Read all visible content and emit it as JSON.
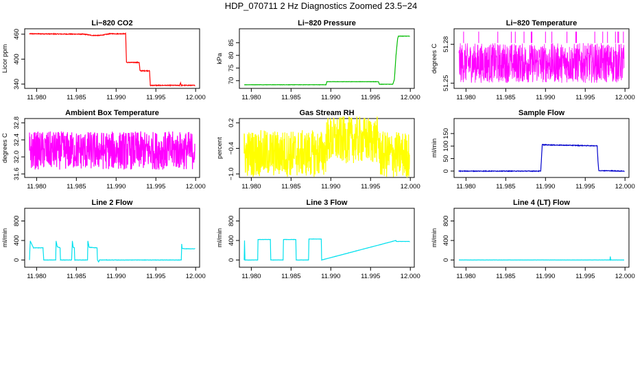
{
  "title": "HDP_070711  2 Hz Diagnostics Zoomed 23.5−24",
  "chart_data": [
    {
      "type": "line",
      "title": "Li−820 CO2",
      "ylabel": "Licor ppm",
      "color": "#ff0000",
      "xlim": [
        11.9785,
        12.0005
      ],
      "ylim": [
        333,
        473
      ],
      "xticks": [
        11.98,
        11.985,
        11.99,
        11.995,
        12.0
      ],
      "xtick_labels": [
        "11.980",
        "11.985",
        "11.990",
        "11.995",
        "12.000"
      ],
      "yticks": [
        340,
        400,
        460
      ],
      "ytick_labels": [
        "340",
        "400",
        "460"
      ],
      "noise": 0.8,
      "x": [
        11.9791,
        11.986,
        11.987,
        11.988,
        11.9892,
        11.9912,
        11.9913,
        11.9929,
        11.993,
        11.9942,
        11.9943,
        11.998,
        11.9981,
        11.9982,
        11.9999
      ],
      "y": [
        461,
        460,
        457,
        457,
        461,
        461,
        392,
        392,
        372,
        372,
        337,
        337,
        343,
        337,
        337
      ]
    },
    {
      "type": "line",
      "title": "Li−820 Pressure",
      "ylabel": "kPa",
      "color": "#00bb00",
      "xlim": [
        11.9785,
        12.0005
      ],
      "ylim": [
        67.5,
        90.5
      ],
      "xticks": [
        11.98,
        11.985,
        11.99,
        11.995,
        12.0
      ],
      "xtick_labels": [
        "11.980",
        "11.985",
        "11.990",
        "11.995",
        "12.000"
      ],
      "yticks": [
        70,
        75,
        80,
        85
      ],
      "ytick_labels": [
        "70",
        "75",
        "80",
        "85"
      ],
      "noise": 0.05,
      "x": [
        11.9791,
        11.9894,
        11.9895,
        11.996,
        11.9961,
        11.9978,
        11.998,
        11.9982,
        11.9984,
        11.9985,
        11.9999
      ],
      "y": [
        68.4,
        68.4,
        69.6,
        69.6,
        68.6,
        68.6,
        70.5,
        80,
        86.5,
        87.6,
        87.6
      ]
    },
    {
      "type": "line",
      "title": "Li−820 Temperature",
      "ylabel": "degrees C",
      "color": "#ff00ff",
      "xlim": [
        11.9785,
        12.0005
      ],
      "ylim": [
        51.247,
        51.292
      ],
      "xticks": [
        11.98,
        11.985,
        11.99,
        11.995,
        12.0
      ],
      "xtick_labels": [
        "11.980",
        "11.985",
        "11.990",
        "11.995",
        "12.000"
      ],
      "yticks": [
        51.25,
        51.28
      ],
      "ytick_labels": [
        "51.25",
        "51.28"
      ],
      "band": [
        51.2502,
        51.281
      ],
      "spikes_up": [
        11.9797,
        11.9816,
        11.984,
        11.9857,
        11.9862,
        11.9873,
        11.9882,
        11.9883,
        11.99,
        11.9908,
        11.9927,
        11.9938,
        11.9939,
        11.9962,
        11.9972,
        11.9978,
        11.9988,
        11.9991,
        11.9992,
        11.9998
      ],
      "spike_top": 51.2898
    },
    {
      "type": "line",
      "title": "Ambient Box Temperature",
      "ylabel": "degrees C",
      "color": "#ff00ff",
      "xlim": [
        11.9785,
        12.0005
      ],
      "ylim": [
        31.55,
        32.9
      ],
      "xticks": [
        11.98,
        11.985,
        11.99,
        11.995,
        12.0
      ],
      "xtick_labels": [
        "11.980",
        "11.985",
        "11.990",
        "11.995",
        "12.000"
      ],
      "yticks": [
        31.6,
        32.0,
        32.4,
        32.8
      ],
      "ytick_labels": [
        "31.6",
        "32.0",
        "32.4",
        "32.8"
      ],
      "noise_center": 32.15,
      "noise": 0.45,
      "x": [
        11.9791,
        11.9999
      ],
      "y": [
        32.15,
        32.15
      ]
    },
    {
      "type": "line",
      "title": "Gas Stream RH",
      "ylabel": "percent",
      "color": "#ffff00",
      "xlim": [
        11.9785,
        12.0005
      ],
      "ylim": [
        -1.05,
        0.3
      ],
      "xticks": [
        11.98,
        11.985,
        11.99,
        11.995,
        12.0
      ],
      "xtick_labels": [
        "11.980",
        "11.985",
        "11.990",
        "11.995",
        "12.000"
      ],
      "yticks": [
        -1.0,
        -0.4,
        0.2
      ],
      "ytick_labels": [
        "−1.0",
        "−0.4",
        "0.2"
      ],
      "noise": 0.55,
      "x": [
        11.9791,
        11.9893,
        11.9895,
        11.996,
        11.9962,
        11.9999
      ],
      "y": [
        -0.52,
        -0.52,
        -0.2,
        -0.2,
        -0.55,
        -0.55
      ]
    },
    {
      "type": "line",
      "title": "Sample Flow",
      "ylabel": "ml/min",
      "color": "#0000cc",
      "xlim": [
        11.9785,
        12.0005
      ],
      "ylim": [
        -20,
        210
      ],
      "xticks": [
        11.98,
        11.985,
        11.99,
        11.995,
        12.0
      ],
      "xtick_labels": [
        "11.980",
        "11.985",
        "11.990",
        "11.995",
        "12.000"
      ],
      "yticks": [
        0,
        50,
        100,
        150
      ],
      "ytick_labels": [
        "0",
        "50",
        "100",
        "150"
      ],
      "noise": 1.2,
      "x": [
        11.9791,
        11.9894,
        11.9895,
        11.9896,
        11.9897,
        11.9965,
        11.9966,
        11.9967,
        11.9999
      ],
      "y": [
        0,
        0,
        55,
        108,
        105,
        101,
        40,
        2,
        0
      ]
    },
    {
      "type": "line",
      "title": "Line 2 Flow",
      "ylabel": "ml/min",
      "color": "#00e0ee",
      "xlim": [
        11.9785,
        12.0005
      ],
      "ylim": [
        -120,
        1060
      ],
      "xticks": [
        11.98,
        11.985,
        11.99,
        11.995,
        12.0
      ],
      "xtick_labels": [
        "11.980",
        "11.985",
        "11.990",
        "11.995",
        "12.000"
      ],
      "yticks": [
        0,
        400,
        800
      ],
      "ytick_labels": [
        "0",
        "400",
        "800"
      ],
      "noise": 3,
      "x": [
        11.9791,
        11.9792,
        11.9796,
        11.9808,
        11.9809,
        11.981,
        11.9824,
        11.98245,
        11.9826,
        11.98295,
        11.983,
        11.9832,
        11.9844,
        11.9845,
        11.9846,
        11.98475,
        11.9848,
        11.9852,
        11.9864,
        11.98645,
        11.9866,
        11.9876,
        11.98765,
        11.9878,
        11.9879,
        11.988,
        11.9982,
        11.99825,
        11.9983,
        11.9986,
        11.9999
      ],
      "y": [
        0,
        390,
        250,
        250,
        0,
        0,
        0,
        390,
        270,
        250,
        0,
        0,
        0,
        390,
        260,
        250,
        0,
        0,
        0,
        390,
        260,
        250,
        0,
        -40,
        0,
        0,
        0,
        330,
        240,
        230,
        230
      ]
    },
    {
      "type": "line",
      "title": "Line 3 Flow",
      "ylabel": "ml/min",
      "color": "#00e0ee",
      "xlim": [
        11.9785,
        12.0005
      ],
      "ylim": [
        -120,
        1060
      ],
      "xticks": [
        11.98,
        11.985,
        11.99,
        11.995,
        12.0
      ],
      "xtick_labels": [
        "11.980",
        "11.985",
        "11.990",
        "11.995",
        "12.000"
      ],
      "yticks": [
        0,
        400,
        800
      ],
      "ytick_labels": [
        "0",
        "400",
        "800"
      ],
      "noise": 2,
      "x": [
        11.9791,
        11.97915,
        11.9792,
        11.9808,
        11.98085,
        11.9824,
        11.98245,
        11.984,
        11.98405,
        11.9856,
        11.98565,
        11.9872,
        11.98725,
        11.9888,
        11.98885,
        11.9982,
        11.99825,
        11.9999
      ],
      "y": [
        0,
        400,
        0,
        0,
        420,
        420,
        0,
        0,
        420,
        420,
        0,
        0,
        430,
        430,
        0,
        400,
        380,
        380
      ]
    },
    {
      "type": "line",
      "title": "Line 4 (LT) Flow",
      "ylabel": "ml/min",
      "color": "#00e0ee",
      "xlim": [
        11.9785,
        12.0005
      ],
      "ylim": [
        -120,
        1060
      ],
      "xticks": [
        11.98,
        11.985,
        11.99,
        11.995,
        12.0
      ],
      "xtick_labels": [
        "11.980",
        "11.985",
        "11.990",
        "11.995",
        "12.000"
      ],
      "yticks": [
        0,
        400,
        800
      ],
      "ytick_labels": [
        "0",
        "400",
        "800"
      ],
      "noise": 1,
      "x": [
        11.9791,
        11.9981,
        11.99815,
        11.9982,
        11.9999
      ],
      "y": [
        0,
        0,
        70,
        0,
        0
      ]
    }
  ]
}
